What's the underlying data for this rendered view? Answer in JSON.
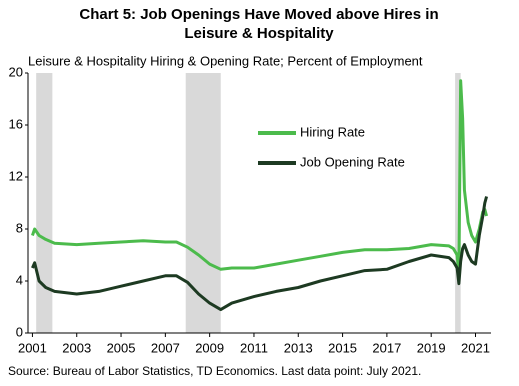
{
  "chart_data": {
    "type": "line",
    "title": [
      "Chart 5: Job Openings Have Moved above Hires in",
      "Leisure & Hospitality"
    ],
    "subtitle": "Leisure & Hospitality Hiring & Opening Rate; Percent of Employment",
    "source": "Source: Bureau of Labor Statistics, TD Economics. Last data point: July 2021.",
    "x": [
      2001.0,
      2001.1,
      2001.3,
      2001.6,
      2002,
      2003,
      2004,
      2005,
      2006,
      2007,
      2007.5,
      2008,
      2008.5,
      2009,
      2009.5,
      2010,
      2011,
      2012,
      2013,
      2014,
      2015,
      2016,
      2017,
      2018,
      2019,
      2019.8,
      2020.0,
      2020.17,
      2020.25,
      2020.33,
      2020.42,
      2020.5,
      2020.67,
      2020.83,
      2021.0,
      2021.17,
      2021.33,
      2021.42,
      2021.5
    ],
    "series": [
      {
        "name": "Hiring Rate",
        "color": "#4cbb4c",
        "values": [
          7.5,
          8.0,
          7.5,
          7.2,
          6.9,
          6.8,
          6.9,
          7.0,
          7.1,
          7.0,
          7.0,
          6.6,
          6.0,
          5.3,
          4.9,
          5.0,
          5.0,
          5.3,
          5.6,
          5.9,
          6.2,
          6.4,
          6.4,
          6.5,
          6.8,
          6.7,
          6.5,
          6.0,
          4.5,
          19.4,
          16.5,
          11.0,
          8.5,
          7.5,
          7.0,
          8.0,
          9.3,
          9.5,
          9.0
        ]
      },
      {
        "name": "Job Opening Rate",
        "color": "#1d3a22",
        "values": [
          5.0,
          5.4,
          4.0,
          3.5,
          3.2,
          3.0,
          3.2,
          3.6,
          4.0,
          4.4,
          4.4,
          3.9,
          3.0,
          2.3,
          1.8,
          2.3,
          2.8,
          3.2,
          3.5,
          4.0,
          4.4,
          4.8,
          4.9,
          5.5,
          6.0,
          5.8,
          5.5,
          5.0,
          3.8,
          5.5,
          6.5,
          6.8,
          6.0,
          5.5,
          5.3,
          7.5,
          9.0,
          10.0,
          10.5
        ]
      }
    ],
    "shaded_periods": [
      [
        2001.17,
        2001.9
      ],
      [
        2007.92,
        2009.5
      ],
      [
        2020.08,
        2020.33
      ]
    ],
    "shade_color": "#d9d9d9",
    "xlim": [
      2000.8,
      2021.7
    ],
    "xticks": [
      2001,
      2003,
      2005,
      2007,
      2009,
      2011,
      2013,
      2015,
      2017,
      2019,
      2021
    ],
    "ylim": [
      0,
      20
    ],
    "yticks": [
      0,
      4,
      8,
      12,
      16,
      20
    ],
    "grid": false,
    "legend": "upper center"
  }
}
